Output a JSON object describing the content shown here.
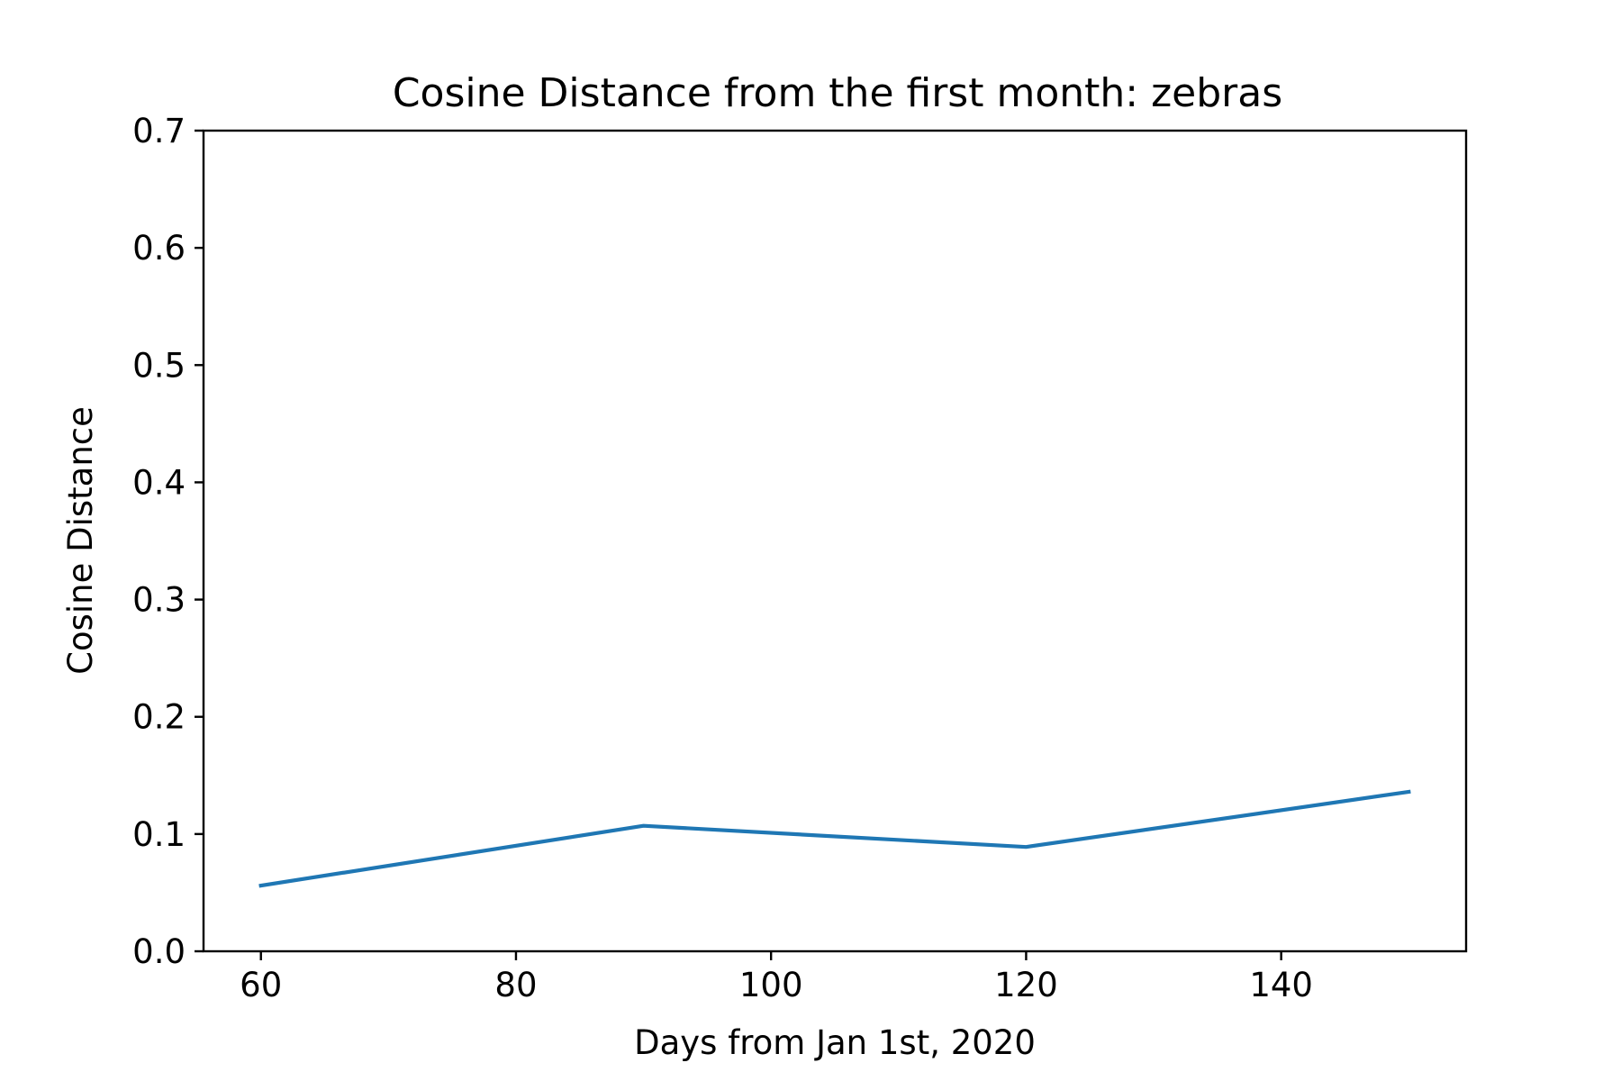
{
  "chart_data": {
    "type": "line",
    "title": "Cosine Distance from the first month: zebras",
    "xlabel": "Days from Jan 1st, 2020",
    "ylabel": "Cosine Distance",
    "xlim": [
      55.5,
      154.5
    ],
    "ylim": [
      0.0,
      0.7
    ],
    "xticks": [
      60,
      80,
      100,
      120,
      140
    ],
    "xtick_labels": [
      "60",
      "80",
      "100",
      "120",
      "140"
    ],
    "yticks": [
      0.0,
      0.1,
      0.2,
      0.3,
      0.4,
      0.5,
      0.6,
      0.7
    ],
    "ytick_labels": [
      "0.0",
      "0.1",
      "0.2",
      "0.3",
      "0.4",
      "0.5",
      "0.6",
      "0.7"
    ],
    "grid": false,
    "legend": "none",
    "series": [
      {
        "color": "#1f77b4",
        "x": [
          60,
          90,
          120,
          150
        ],
        "y": [
          0.056,
          0.107,
          0.089,
          0.136
        ]
      }
    ]
  }
}
